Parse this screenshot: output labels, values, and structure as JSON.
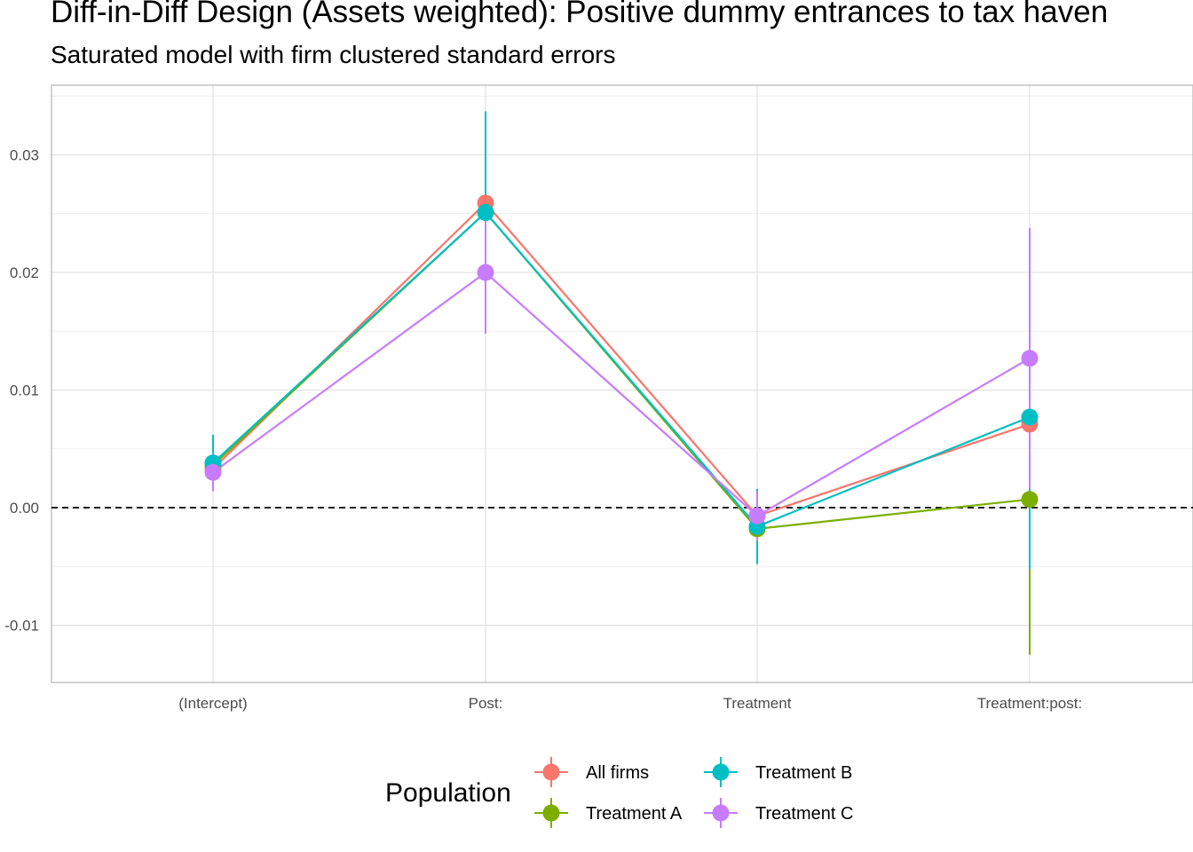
{
  "chart_data": {
    "type": "line",
    "title": "Diff-in-Diff Design (Assets weighted): Positive dummy entrances to tax haven",
    "subtitle": "Saturated model with firm clustered standard errors",
    "xlabel": "",
    "ylabel": "",
    "categories": [
      "(Intercept)",
      "Post:",
      "Treatment",
      "Treatment:post:"
    ],
    "ylim": [
      -0.0148,
      0.0359
    ],
    "yticks": [
      -0.01,
      0.0,
      0.01,
      0.02,
      0.03
    ],
    "ytick_labels": [
      "-0.01",
      "0.00",
      "0.01",
      "0.02",
      "0.03"
    ],
    "reference_line": {
      "y": 0.0,
      "style": "dashed"
    },
    "grid": true,
    "legend": {
      "title": "Population",
      "position": "bottom"
    },
    "series": [
      {
        "name": "All firms",
        "color": "#F8766D",
        "values": [
          0.0033,
          0.0259,
          -0.0007,
          0.0071
        ],
        "lower": [
          0.002,
          0.0232,
          -0.0015,
          0.0055
        ],
        "upper": [
          0.0046,
          0.0286,
          0.0001,
          0.0087
        ]
      },
      {
        "name": "Treatment A",
        "color": "#7CAE00",
        "values": [
          0.0036,
          0.0251,
          -0.0018,
          0.0007
        ],
        "lower": [
          0.002,
          0.0225,
          -0.0047,
          -0.0125
        ],
        "upper": [
          0.0052,
          0.0277,
          0.0011,
          0.0139
        ]
      },
      {
        "name": "Treatment B",
        "color": "#00BFC4",
        "values": [
          0.0038,
          0.0251,
          -0.0016,
          0.0077
        ],
        "lower": [
          0.0014,
          0.0165,
          -0.0048,
          -0.0052
        ],
        "upper": [
          0.0062,
          0.0337,
          0.0016,
          0.0206
        ]
      },
      {
        "name": "Treatment C",
        "color": "#C77CFF",
        "values": [
          0.003,
          0.02,
          -0.0007,
          0.0127
        ],
        "lower": [
          0.0014,
          0.0148,
          -0.0028,
          0.0016
        ],
        "upper": [
          0.0046,
          0.0252,
          0.0014,
          0.0238
        ]
      }
    ]
  }
}
